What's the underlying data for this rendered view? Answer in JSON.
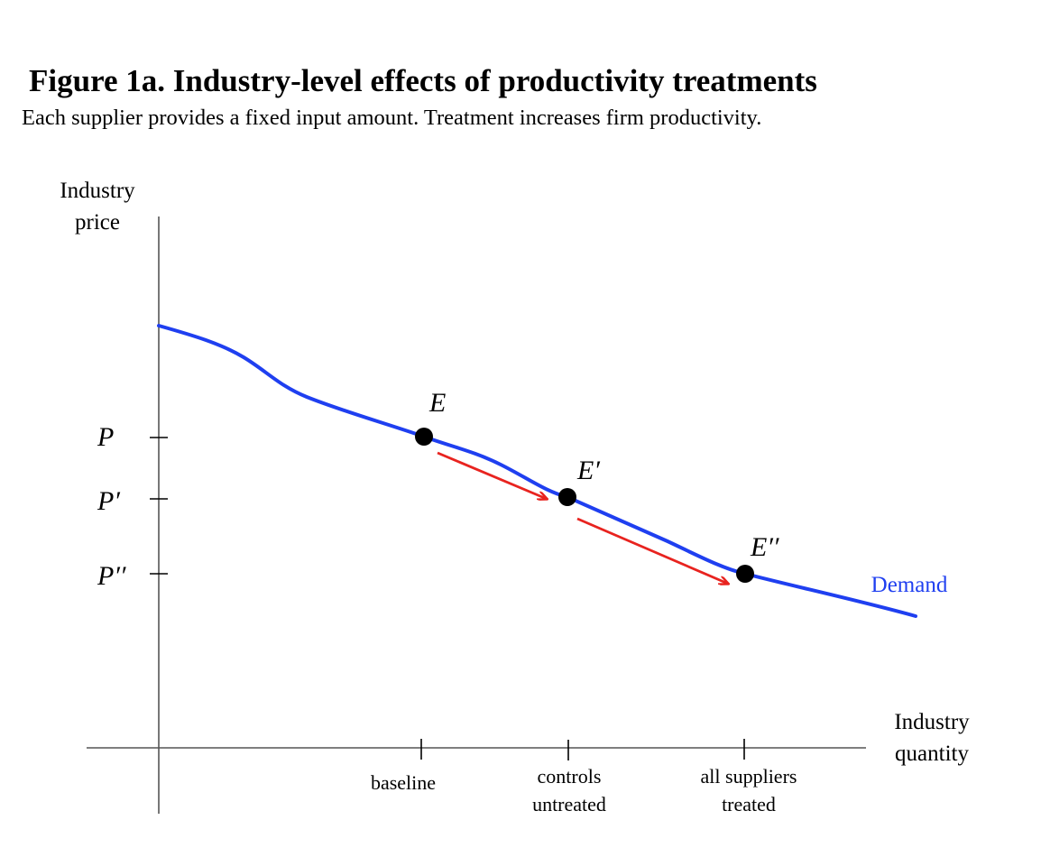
{
  "figure": {
    "title": "Figure 1a. Industry-level effects of productivity treatments",
    "subtitle": "Each supplier provides a fixed input amount. Treatment increases firm productivity."
  },
  "axes": {
    "y_label_line1": "Industry",
    "y_label_line2": "price",
    "x_label_line1": "Industry",
    "x_label_line2": "quantity",
    "y_ticks": [
      "P",
      "P′",
      "P′′"
    ],
    "x_ticks": [
      {
        "line1": "baseline",
        "line2": ""
      },
      {
        "line1": "controls",
        "line2": "untreated"
      },
      {
        "line1": "all suppliers",
        "line2": "treated"
      }
    ]
  },
  "curve": {
    "label": "Demand",
    "color": "#1f3ff0"
  },
  "points": [
    "E",
    "E′",
    "E′′"
  ],
  "arrow_color": "#e8231f"
}
